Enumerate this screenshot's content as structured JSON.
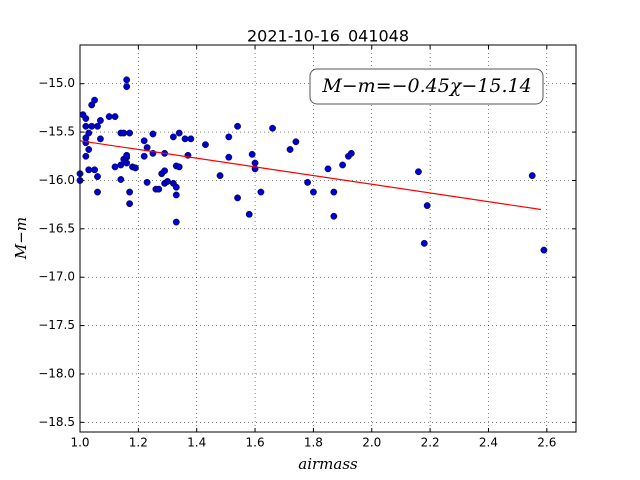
{
  "chart_data": {
    "type": "scatter",
    "title": "2021-10-16_041048",
    "x_label": "airmass",
    "y_label": "M−m",
    "annotation": "M−m=−0.45χ−15.14",
    "color": "#0000cc",
    "grid": true,
    "xlim": [
      1.0,
      2.7
    ],
    "ylim": [
      -18.6,
      -14.6
    ],
    "xticks": [
      {
        "value": 1.0,
        "label": "1.0"
      },
      1.2,
      1.4,
      1.6,
      1.8,
      {
        "value": 2.0,
        "label": "2.0"
      },
      2.2,
      2.4,
      2.6
    ],
    "yticks": [
      {
        "value": -15.0,
        "label": "−15.0"
      },
      {
        "value": -15.5,
        "label": "−15.5"
      },
      {
        "value": -16.0,
        "label": "−16.0"
      },
      {
        "value": -16.5,
        "label": "−16.5"
      },
      {
        "value": -17.0,
        "label": "−17.0"
      },
      {
        "value": -17.5,
        "label": "−17.5"
      },
      {
        "value": -18.0,
        "label": "−18.0"
      },
      {
        "value": -18.5,
        "label": "−18.5"
      }
    ],
    "x": [
      1.0,
      1.0,
      1.01,
      1.02,
      1.02,
      1.02,
      1.02,
      1.03,
      1.03,
      1.02,
      1.03,
      1.04,
      1.05,
      1.06,
      1.04,
      1.05,
      1.06,
      1.06,
      1.07,
      1.07,
      1.1,
      1.12,
      1.12,
      1.14,
      1.14,
      1.15,
      1.14,
      1.15,
      1.16,
      1.16,
      1.16,
      1.16,
      1.16,
      1.17,
      1.17,
      1.17,
      1.18,
      1.19,
      1.22,
      1.22,
      1.23,
      1.23,
      1.25,
      1.25,
      1.26,
      1.27,
      1.28,
      1.29,
      1.29,
      1.29,
      1.3,
      1.32,
      1.32,
      1.33,
      1.33,
      1.34,
      1.34,
      1.33,
      1.33,
      1.36,
      1.37,
      1.38,
      1.43,
      1.48,
      1.51,
      1.51,
      1.54,
      1.54,
      1.58,
      1.59,
      1.6,
      1.6,
      1.62,
      1.66,
      1.72,
      1.74,
      1.78,
      1.8,
      1.85,
      1.87,
      1.87,
      1.9,
      1.92,
      1.93,
      2.16,
      2.18,
      2.19,
      2.55,
      2.59
    ],
    "values": [
      -16.0,
      -15.93,
      -15.32,
      -15.36,
      -15.44,
      -15.56,
      -15.61,
      -15.51,
      -15.68,
      -15.75,
      -15.89,
      -15.22,
      -15.17,
      -15.44,
      -15.44,
      -15.89,
      -15.96,
      -16.12,
      -15.38,
      -15.57,
      -15.34,
      -15.34,
      -15.86,
      -15.84,
      -15.51,
      -15.51,
      -15.99,
      -15.78,
      -14.96,
      -15.03,
      -15.82,
      -15.76,
      -15.74,
      -15.51,
      -16.12,
      -16.24,
      -15.86,
      -15.87,
      -15.59,
      -15.75,
      -15.66,
      -16.02,
      -15.52,
      -15.72,
      -16.09,
      -16.09,
      -15.93,
      -15.72,
      -15.9,
      -16.03,
      -16.01,
      -15.55,
      -16.03,
      -15.85,
      -16.07,
      -15.86,
      -15.51,
      -16.43,
      -16.15,
      -15.57,
      -15.74,
      -15.57,
      -15.63,
      -15.95,
      -15.55,
      -15.76,
      -15.44,
      -16.18,
      -16.35,
      -15.73,
      -15.82,
      -15.88,
      -16.12,
      -15.46,
      -15.68,
      -15.6,
      -16.02,
      -16.12,
      -15.88,
      -16.12,
      -16.37,
      -15.84,
      -15.75,
      -15.72,
      -15.91,
      -16.65,
      -16.26,
      -15.95,
      -16.72
    ],
    "fit": {
      "x": [
        1.0,
        2.58
      ],
      "values": [
        -15.59,
        -16.3
      ],
      "color": "#ff0000"
    }
  }
}
